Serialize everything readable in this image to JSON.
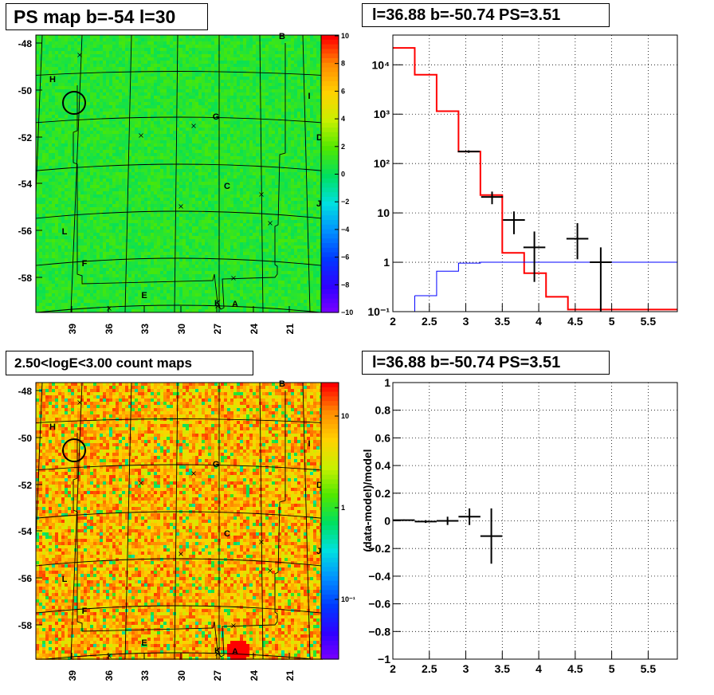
{
  "panels": {
    "top_left_title": "PS map b=-54 l=30",
    "top_right_title": "l=36.88 b=-50.74 PS=3.51",
    "bottom_left_title": "2.50<logE<3.00 count maps",
    "bottom_right_title": "l=36.88 b=-50.74 PS=3.51"
  },
  "colors": {
    "data_hist": "#ff0000",
    "model_hist": "#0000ff",
    "grid": "#000000"
  },
  "chart_data": [
    {
      "type": "heatmap",
      "title": "PS map b=-54 l=30",
      "x_tick_labels": [
        "39",
        "36",
        "33",
        "30",
        "27",
        "24",
        "21"
      ],
      "y_tick_labels": [
        "-48",
        "-50",
        "-52",
        "-54",
        "-56",
        "-58"
      ],
      "colorbar": {
        "scale": "linear",
        "range": [
          -10,
          10
        ],
        "tick_labels": [
          "10",
          "8",
          "6",
          "4",
          "2",
          "0",
          "−2",
          "−4",
          "−6",
          "−8",
          "−10"
        ]
      },
      "region_labels": [
        "B",
        "H",
        "I",
        "G",
        "D",
        "C",
        "J",
        "L",
        "F",
        "E",
        "K",
        "A"
      ]
    },
    {
      "type": "line",
      "title": "l=36.88 b=-50.74 PS=3.51",
      "x_tick_labels": [
        "2",
        "2.5",
        "3",
        "3.5",
        "4",
        "4.5",
        "5",
        "5.5"
      ],
      "y_tick_labels": [
        "10⁻¹",
        "1",
        "10",
        "10²",
        "10³",
        "10⁴"
      ],
      "xlim": [
        2,
        5.9
      ],
      "ylim": [
        0.1,
        40000
      ],
      "yscale": "log",
      "grid": true,
      "series": [
        {
          "bin_edges": [
            2.0,
            2.3,
            2.6,
            2.9,
            3.2,
            3.5,
            3.8,
            4.1,
            4.4,
            5.9
          ],
          "values": [
            22000,
            6300,
            1150,
            175,
            23,
            1.55,
            0.6,
            0.2,
            0.11
          ]
        },
        {
          "bin_edges": [
            2.3,
            2.6,
            2.9,
            3.2,
            5.9
          ],
          "values": [
            0.21,
            0.66,
            0.96,
            1.0
          ]
        },
        {
          "x": [
            3.04,
            3.36,
            3.66,
            3.94,
            4.53,
            4.85
          ],
          "y": [
            175,
            21,
            7.2,
            2,
            3,
            1
          ],
          "xerr": [
            0.15,
            0.15,
            0.15,
            0.15,
            0.15,
            0.15
          ],
          "yerr_low": [
            10,
            6,
            3.5,
            1.6,
            1.85,
            1
          ],
          "yerr_high": [
            10,
            6,
            3.5,
            2.2,
            3.2,
            1
          ]
        }
      ]
    },
    {
      "type": "heatmap",
      "title": "2.50<logE<3.00 count maps",
      "x_tick_labels": [
        "39",
        "36",
        "33",
        "30",
        "27",
        "24",
        "21"
      ],
      "y_tick_labels": [
        "-48",
        "-50",
        "-52",
        "-54",
        "-56",
        "-58"
      ],
      "colorbar": {
        "scale": "log",
        "tick_labels": [
          "10",
          "1",
          "10⁻¹"
        ]
      },
      "region_labels": [
        "B",
        "H",
        "I",
        "G",
        "D",
        "C",
        "J",
        "L",
        "F",
        "E",
        "K",
        "A"
      ]
    },
    {
      "type": "scatter",
      "title": "l=36.88 b=-50.74 PS=3.51",
      "ylabel": "(data-model)/model",
      "x_tick_labels": [
        "2",
        "2.5",
        "3",
        "3.5",
        "4",
        "4.5",
        "5",
        "5.5"
      ],
      "y_tick_labels": [
        "1",
        "0.8",
        "0.6",
        "0.4",
        "0.2",
        "0",
        "−0.2",
        "−0.4",
        "−0.6",
        "−0.8",
        "−1"
      ],
      "xlim": [
        2,
        5.9
      ],
      "ylim": [
        -1,
        1
      ],
      "grid": true,
      "series": [
        {
          "x": [
            2.15,
            2.45,
            2.75,
            3.05,
            3.35
          ],
          "y": [
            0.005,
            -0.005,
            0.0,
            0.03,
            -0.11
          ],
          "xerr": [
            0.15,
            0.15,
            0.15,
            0.15,
            0.15
          ],
          "yerr": [
            0.005,
            0.01,
            0.03,
            0.06,
            0.2
          ]
        }
      ]
    }
  ]
}
